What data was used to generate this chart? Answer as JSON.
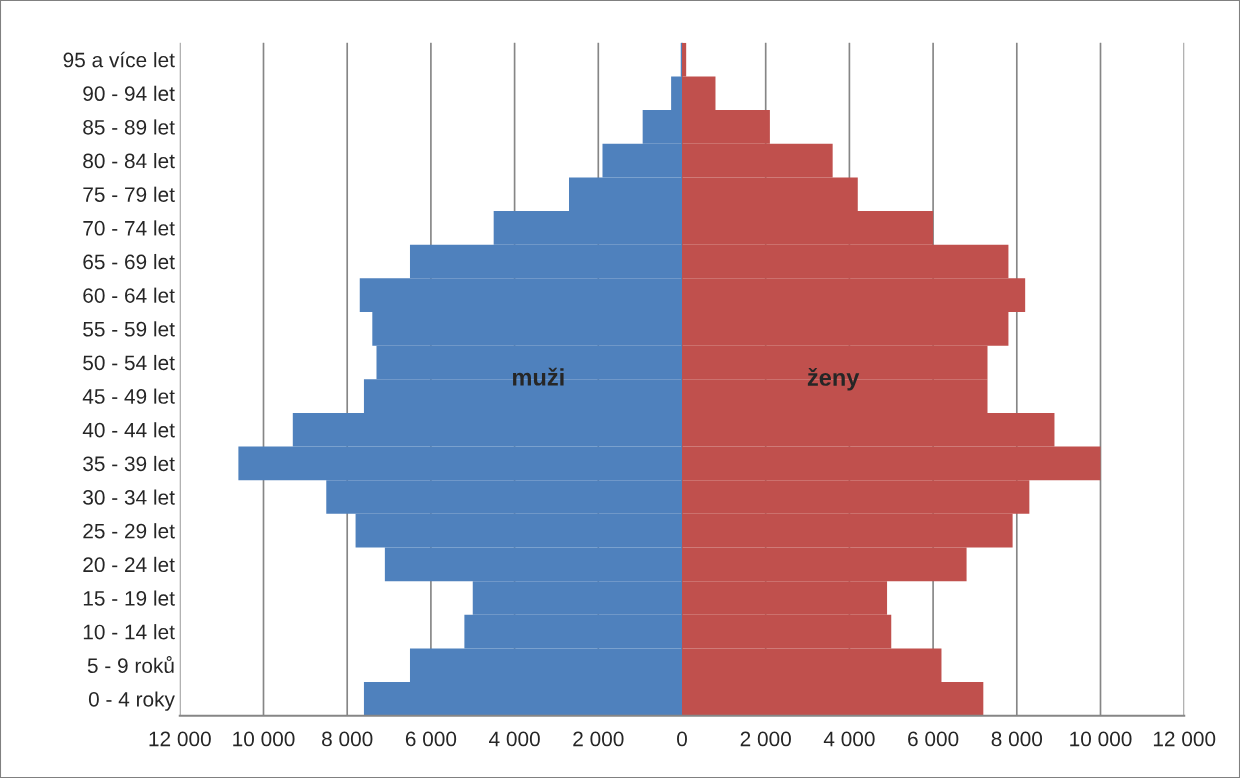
{
  "chart_data": {
    "type": "bar",
    "orientation": "horizontal",
    "stacked": true,
    "categories": [
      "95 a více let",
      "90 - 94 let",
      "85 - 89 let",
      "80 - 84 let",
      "75 - 79 let",
      "70 - 74 let",
      "65 - 69 let",
      "60 - 64 let",
      "55 - 59 let",
      "50 - 54 let",
      "45 - 49 let",
      "40 - 44 let",
      "35 - 39 let",
      "30 - 34 let",
      "25 - 29 let",
      "20 - 24 let",
      "15 - 19 let",
      "10 - 14 let",
      "5 - 9 roků",
      "0 - 4 roky"
    ],
    "series": [
      {
        "name": "muži",
        "color": "#4f81bd",
        "values": [
          -30,
          -260,
          -940,
          -1900,
          -2700,
          -4500,
          -6500,
          -7700,
          -7400,
          -7300,
          -7600,
          -9300,
          -10600,
          -8500,
          -7800,
          -7100,
          -5000,
          -5200,
          -6500,
          -7600
        ]
      },
      {
        "name": "ženy",
        "color": "#c0504d",
        "values": [
          100,
          800,
          2100,
          3600,
          4200,
          6000,
          7800,
          8200,
          7800,
          7300,
          7300,
          8900,
          10000,
          8300,
          7900,
          6800,
          4900,
          5000,
          6200,
          7200
        ]
      }
    ],
    "xlim": [
      -12000,
      12000
    ],
    "xticks": [
      {
        "value": -12000,
        "label": "12 000"
      },
      {
        "value": -10000,
        "label": "10 000"
      },
      {
        "value": -8000,
        "label": "8 000"
      },
      {
        "value": -6000,
        "label": "6 000"
      },
      {
        "value": -4000,
        "label": "4 000"
      },
      {
        "value": -2000,
        "label": "2 000"
      },
      0,
      {
        "value": 2000,
        "label": "2 000"
      },
      {
        "value": 4000,
        "label": "4 000"
      },
      {
        "value": 6000,
        "label": "6 000"
      },
      {
        "value": 8000,
        "label": "8 000"
      },
      {
        "value": 10000,
        "label": "10 000"
      },
      {
        "value": 12000,
        "label": "12 000"
      }
    ],
    "grid": "x",
    "legend": false
  }
}
